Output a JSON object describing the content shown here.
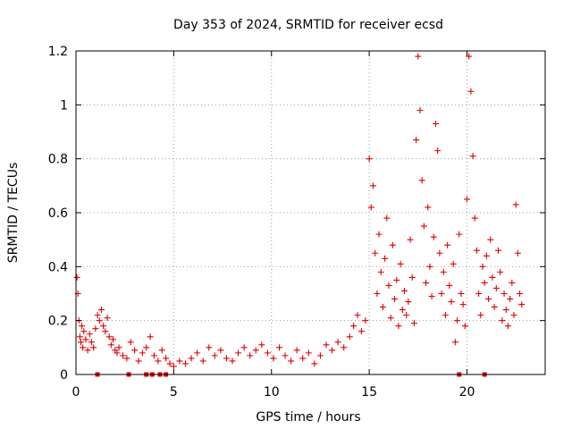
{
  "chart_data": {
    "type": "scatter",
    "title": "Day 353 of 2024, SRMTID for receiver ecsd",
    "xlabel": "GPS time / hours",
    "ylabel": "SRMTID / TECUs",
    "xlim": [
      0,
      24
    ],
    "ylim": [
      0,
      1.2
    ],
    "xticks": [
      0,
      5,
      10,
      15,
      20
    ],
    "xtick_labels": [
      "0",
      "5",
      "10",
      "15",
      "20"
    ],
    "yticks": [
      0,
      0.2,
      0.4,
      0.6,
      0.8,
      1,
      1.2
    ],
    "ytick_labels": [
      "0",
      "0.2",
      "0.4",
      "0.6",
      "0.8",
      "1",
      "1.2"
    ],
    "grid": true,
    "marker": "+",
    "color": "#e00000",
    "series": [
      {
        "name": "ecsd",
        "x": [
          0.05,
          0.1,
          0.15,
          0.2,
          0.25,
          0.3,
          0.35,
          0.4,
          0.5,
          0.6,
          0.7,
          0.8,
          0.9,
          1.0,
          1.1,
          1.2,
          1.3,
          1.4,
          1.5,
          1.6,
          1.7,
          1.8,
          1.9,
          2.0,
          2.1,
          2.2,
          2.4,
          2.6,
          2.8,
          3.0,
          3.2,
          3.4,
          3.6,
          3.8,
          4.0,
          4.2,
          4.4,
          4.6,
          4.8,
          5.0,
          5.3,
          5.6,
          5.9,
          6.2,
          6.5,
          6.8,
          7.1,
          7.4,
          7.7,
          8.0,
          8.3,
          8.6,
          8.9,
          9.2,
          9.5,
          9.8,
          10.1,
          10.4,
          10.7,
          11.0,
          11.3,
          11.6,
          11.9,
          12.2,
          12.5,
          12.8,
          13.1,
          13.4,
          13.7,
          14.0,
          14.2,
          14.4,
          14.6,
          14.8,
          15.0,
          15.1,
          15.2,
          15.3,
          15.4,
          15.5,
          15.6,
          15.7,
          15.8,
          15.9,
          16.0,
          16.1,
          16.2,
          16.3,
          16.4,
          16.5,
          16.6,
          16.7,
          16.8,
          16.9,
          17.0,
          17.1,
          17.2,
          17.3,
          17.4,
          17.5,
          17.6,
          17.7,
          17.8,
          17.9,
          18.0,
          18.1,
          18.2,
          18.3,
          18.4,
          18.5,
          18.6,
          18.7,
          18.8,
          18.9,
          19.0,
          19.1,
          19.2,
          19.3,
          19.4,
          19.5,
          19.6,
          19.7,
          19.8,
          19.9,
          20.0,
          20.1,
          20.2,
          20.3,
          20.4,
          20.5,
          20.6,
          20.7,
          20.8,
          20.9,
          21.0,
          21.1,
          21.2,
          21.3,
          21.4,
          21.5,
          21.6,
          21.7,
          21.8,
          21.9,
          22.0,
          22.1,
          22.2,
          22.3,
          22.4,
          22.5,
          22.6,
          22.7,
          22.8
        ],
        "y": [
          0.36,
          0.3,
          0.2,
          0.14,
          0.12,
          0.18,
          0.1,
          0.16,
          0.13,
          0.09,
          0.15,
          0.12,
          0.1,
          0.17,
          0.22,
          0.2,
          0.24,
          0.18,
          0.16,
          0.21,
          0.14,
          0.11,
          0.13,
          0.09,
          0.08,
          0.1,
          0.07,
          0.06,
          0.12,
          0.09,
          0.05,
          0.08,
          0.1,
          0.14,
          0.07,
          0.05,
          0.09,
          0.06,
          0.04,
          0.03,
          0.05,
          0.04,
          0.06,
          0.08,
          0.05,
          0.1,
          0.07,
          0.09,
          0.06,
          0.05,
          0.08,
          0.1,
          0.07,
          0.09,
          0.11,
          0.08,
          0.06,
          0.1,
          0.07,
          0.05,
          0.09,
          0.06,
          0.08,
          0.04,
          0.07,
          0.11,
          0.09,
          0.12,
          0.1,
          0.14,
          0.18,
          0.22,
          0.16,
          0.2,
          0.8,
          0.62,
          0.7,
          0.45,
          0.3,
          0.52,
          0.38,
          0.25,
          0.43,
          0.58,
          0.33,
          0.21,
          0.48,
          0.28,
          0.35,
          0.18,
          0.41,
          0.24,
          0.31,
          0.22,
          0.27,
          0.5,
          0.36,
          0.19,
          0.87,
          1.18,
          0.98,
          0.72,
          0.55,
          0.34,
          0.62,
          0.4,
          0.29,
          0.51,
          0.93,
          0.83,
          0.45,
          0.3,
          0.38,
          0.22,
          0.48,
          0.33,
          0.27,
          0.41,
          0.12,
          0.2,
          0.52,
          0.3,
          0.26,
          0.18,
          0.65,
          1.18,
          1.05,
          0.81,
          0.58,
          0.46,
          0.3,
          0.22,
          0.4,
          0.34,
          0.44,
          0.28,
          0.5,
          0.36,
          0.25,
          0.32,
          0.46,
          0.38,
          0.2,
          0.3,
          0.24,
          0.18,
          0.28,
          0.34,
          0.22,
          0.63,
          0.45,
          0.3,
          0.26
        ]
      }
    ],
    "gaps_at_zero": [
      1.1,
      2.7,
      3.6,
      3.9,
      4.3,
      4.6,
      19.6,
      20.9
    ]
  }
}
